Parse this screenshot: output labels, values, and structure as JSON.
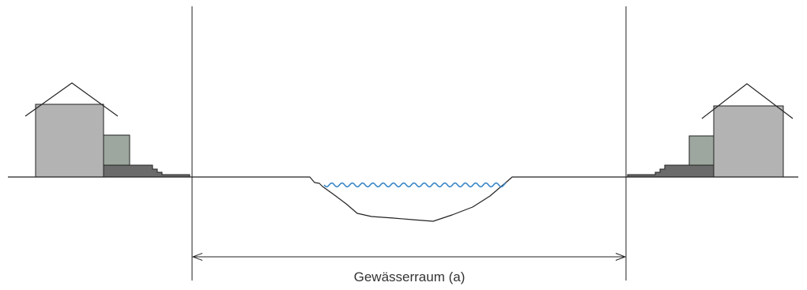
{
  "diagram": {
    "label": "Gewässerraum (a)",
    "colors": {
      "line": "#222222",
      "house_body": "#b3b3b3",
      "house_annex": "#9ea79f",
      "steps": "#6b6b6b",
      "water": "#3a87c8",
      "background": "#ffffff"
    }
  }
}
